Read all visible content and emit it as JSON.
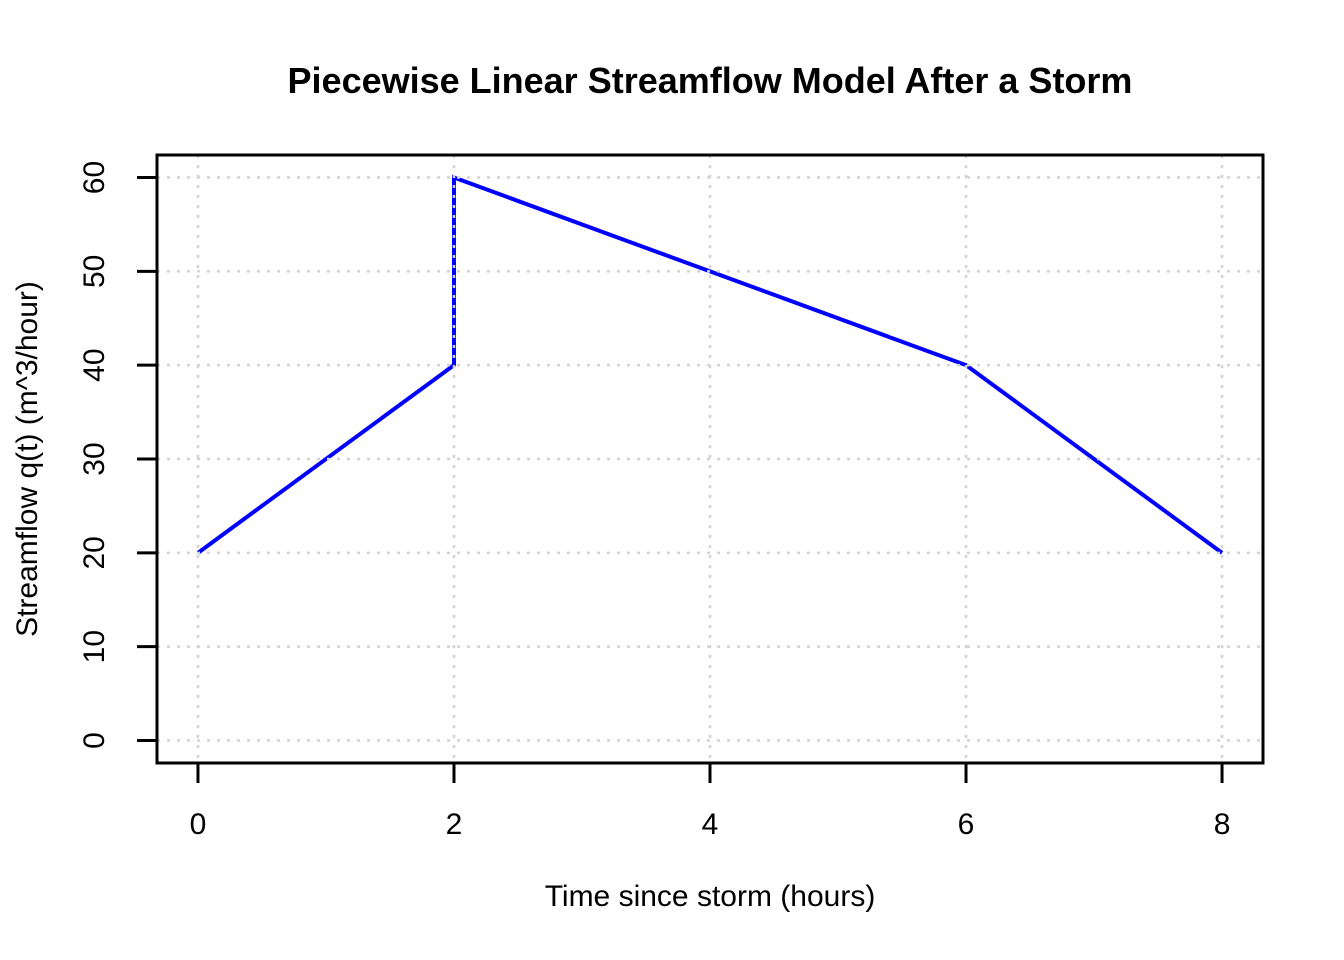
{
  "chart_data": {
    "type": "line",
    "title": "Piecewise Linear Streamflow Model After a Storm",
    "xlabel": "Time since storm (hours)",
    "ylabel": "Streamflow q(t) (m^3/hour)",
    "series": [
      {
        "name": "streamflow",
        "x": [
          0,
          2,
          2,
          6,
          8
        ],
        "y": [
          20,
          40,
          60,
          40,
          20
        ],
        "color": "#0000FF",
        "line_width": 4
      }
    ],
    "xticks": [
      "0",
      "2",
      "4",
      "6",
      "8"
    ],
    "xtick_values": [
      0,
      2,
      4,
      6,
      8
    ],
    "yticks": [
      "0",
      "10",
      "20",
      "30",
      "40",
      "50",
      "60"
    ],
    "ytick_values": [
      0,
      10,
      20,
      30,
      40,
      50,
      60
    ],
    "xlim": [
      -0.32,
      8.32
    ],
    "ylim": [
      -2.4,
      62.4
    ],
    "grid": true,
    "grid_color": "#D3D3D3",
    "grid_style": "dotted",
    "box_color": "#000000",
    "background": "#FFFFFF"
  }
}
